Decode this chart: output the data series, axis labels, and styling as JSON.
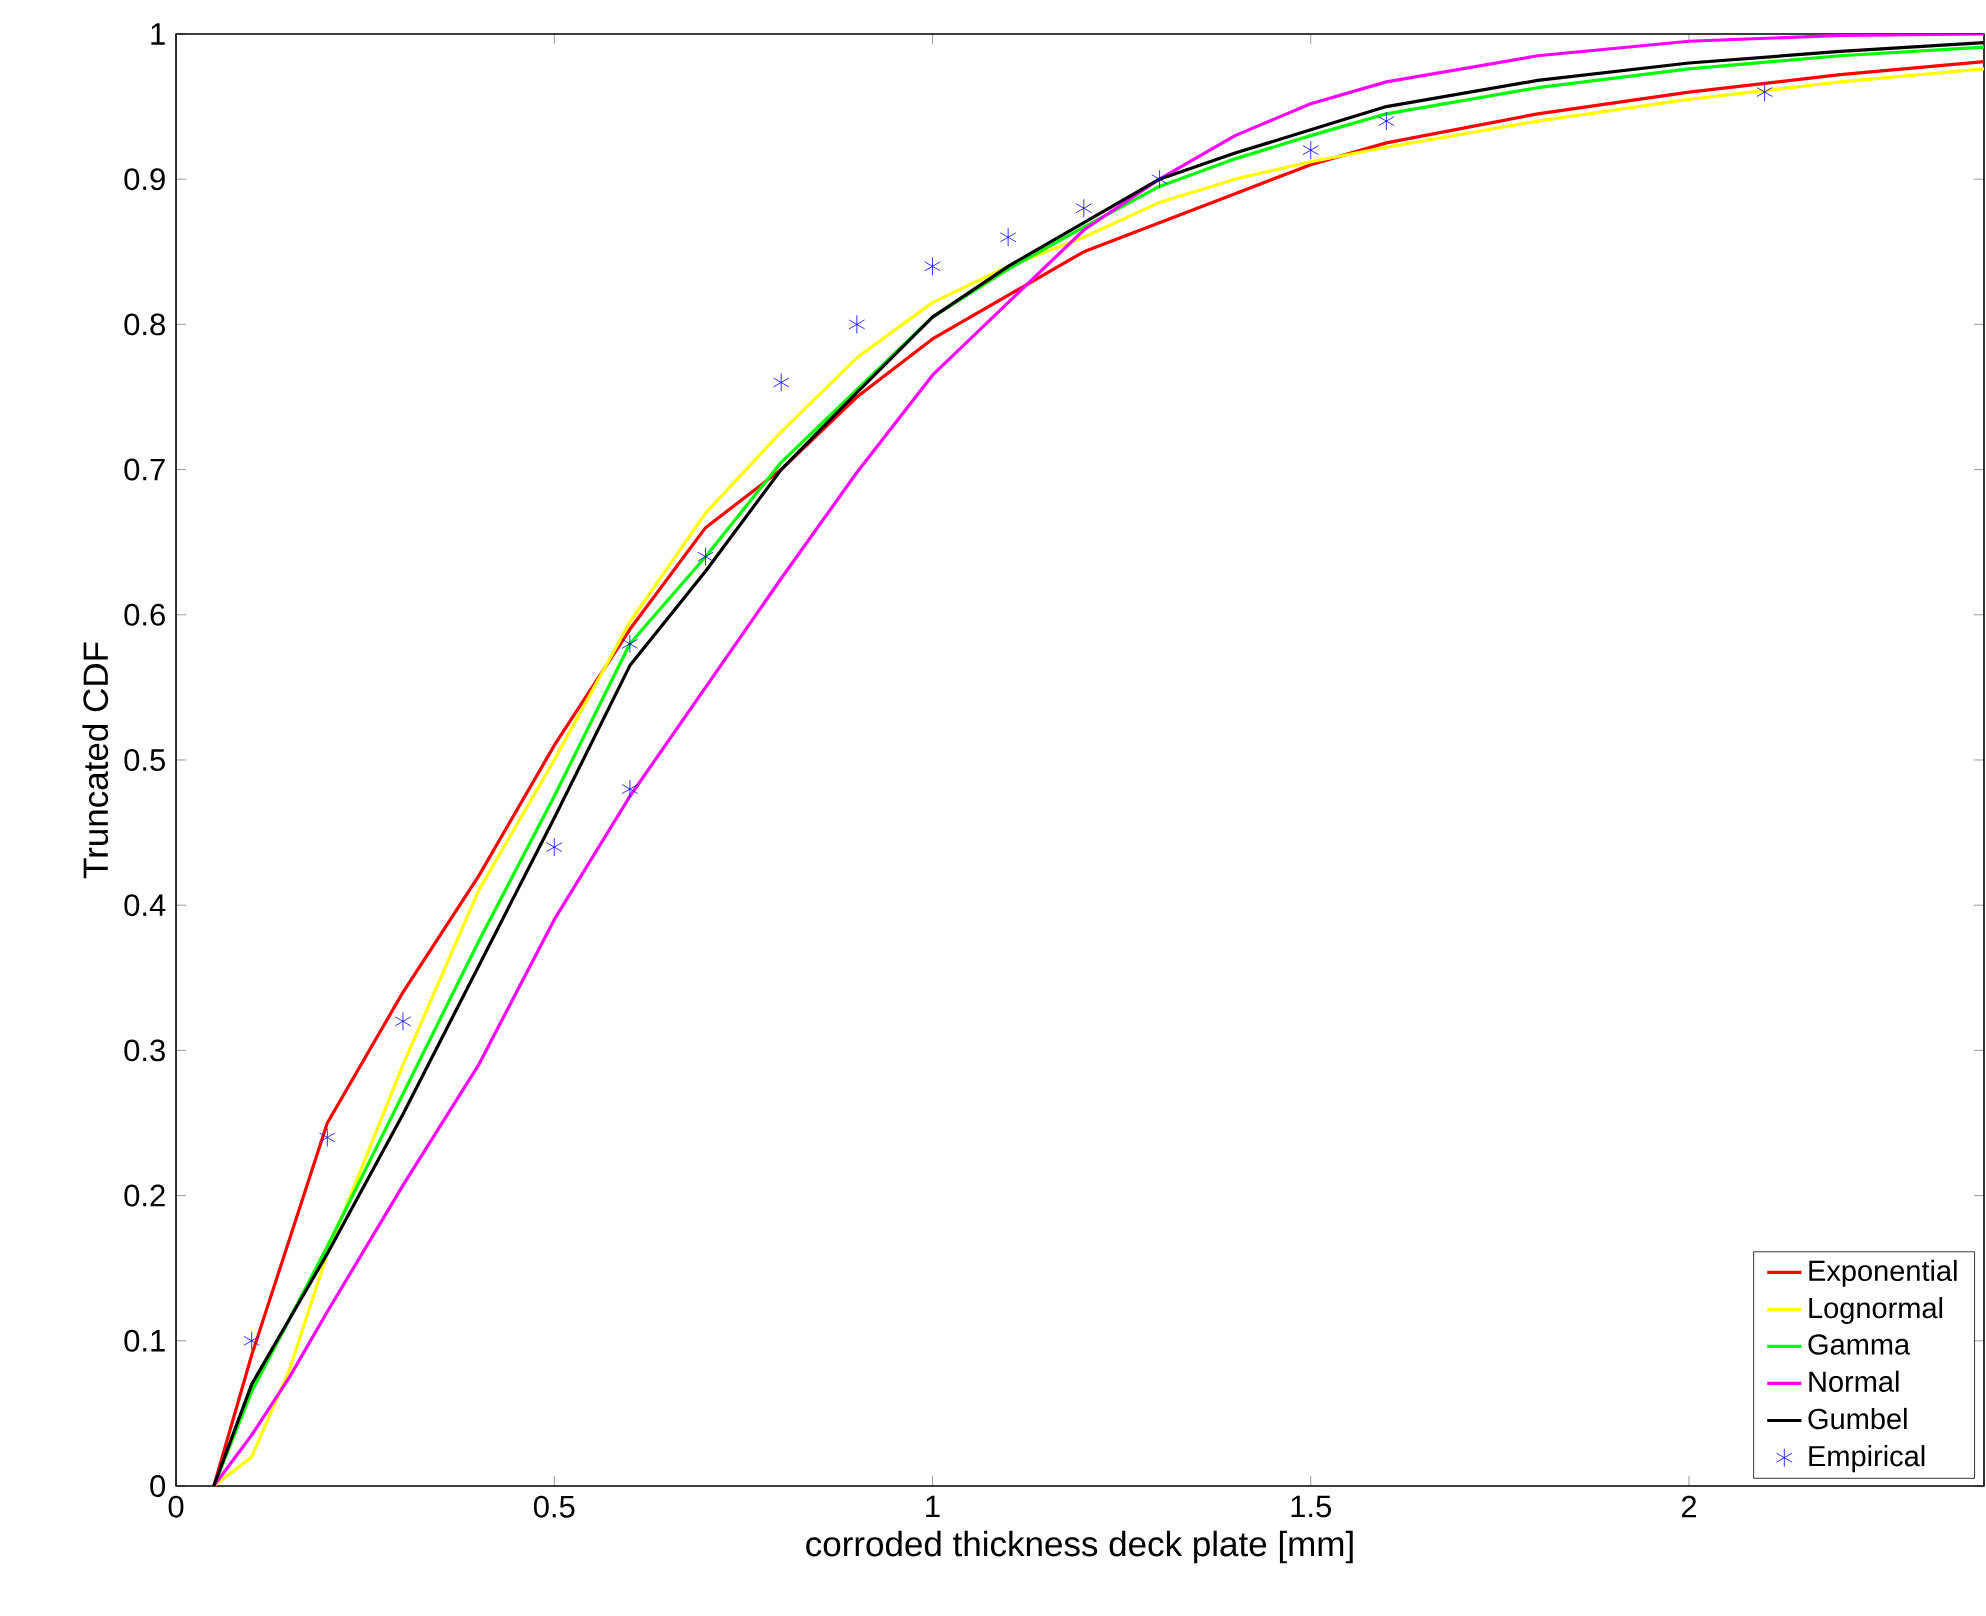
{
  "chart_data": {
    "type": "line",
    "xlabel": "corroded thickness deck plate [mm]",
    "ylabel": "Truncated CDF",
    "xlim": [
      0,
      2.39
    ],
    "ylim": [
      0,
      1
    ],
    "xticks": [
      0,
      0.5,
      1,
      1.5,
      2
    ],
    "yticks": [
      0,
      0.1,
      0.2,
      0.3,
      0.4,
      0.5,
      0.6,
      0.7,
      0.8,
      0.9,
      1
    ],
    "grid": false,
    "legend": "bottom right",
    "line_style": "solid",
    "x": [
      0.05,
      0.1,
      0.15,
      0.2,
      0.3,
      0.4,
      0.5,
      0.6,
      0.7,
      0.8,
      0.9,
      1.0,
      1.1,
      1.2,
      1.3,
      1.4,
      1.5,
      1.6,
      1.8,
      2.0,
      2.2,
      2.39
    ],
    "series": [
      {
        "name": "Exponential",
        "color": "#ff0000",
        "values": [
          0,
          0.09,
          0.17,
          0.25,
          0.34,
          0.42,
          0.51,
          0.59,
          0.66,
          0.7,
          0.75,
          0.79,
          0.82,
          0.85,
          0.87,
          0.89,
          0.91,
          0.925,
          0.945,
          0.96,
          0.972,
          0.981
        ]
      },
      {
        "name": "Lognormal",
        "color": "#ffff00",
        "values": [
          0,
          0.02,
          0.08,
          0.16,
          0.29,
          0.41,
          0.5,
          0.595,
          0.67,
          0.726,
          0.777,
          0.815,
          0.84,
          0.86,
          0.884,
          0.9,
          0.912,
          0.922,
          0.94,
          0.955,
          0.967,
          0.976
        ]
      },
      {
        "name": "Gamma",
        "color": "#00ff00",
        "values": [
          0,
          0.065,
          0.115,
          0.165,
          0.27,
          0.375,
          0.475,
          0.58,
          0.64,
          0.705,
          0.755,
          0.805,
          0.838,
          0.867,
          0.895,
          0.914,
          0.93,
          0.945,
          0.963,
          0.976,
          0.985,
          0.991
        ]
      },
      {
        "name": "Normal",
        "color": "#ff00ff",
        "values": [
          0,
          0.035,
          0.075,
          0.12,
          0.207,
          0.29,
          0.39,
          0.475,
          0.55,
          0.625,
          0.698,
          0.765,
          0.815,
          0.865,
          0.9,
          0.93,
          0.952,
          0.967,
          0.985,
          0.995,
          0.999,
          1.0
        ]
      },
      {
        "name": "Gumbel",
        "color": "#000000",
        "values": [
          0,
          0.07,
          0.115,
          0.16,
          0.256,
          0.358,
          0.46,
          0.565,
          0.63,
          0.7,
          0.753,
          0.805,
          0.84,
          0.87,
          0.9,
          0.918,
          0.934,
          0.95,
          0.968,
          0.98,
          0.988,
          0.994
        ]
      },
      {
        "name": "Empirical",
        "type": "scatter",
        "marker": "cross",
        "color": "#0000ff",
        "x": [
          0.1,
          0.2,
          0.3,
          0.5,
          0.6,
          0.6,
          0.7,
          0.8,
          0.9,
          1.0,
          1.1,
          1.2,
          1.3,
          1.5,
          1.6,
          2.1
        ],
        "values": [
          0.1,
          0.24,
          0.32,
          0.44,
          0.48,
          0.58,
          0.64,
          0.76,
          0.8,
          0.84,
          0.86,
          0.88,
          0.9,
          0.92,
          0.94,
          0.96
        ]
      }
    ]
  }
}
